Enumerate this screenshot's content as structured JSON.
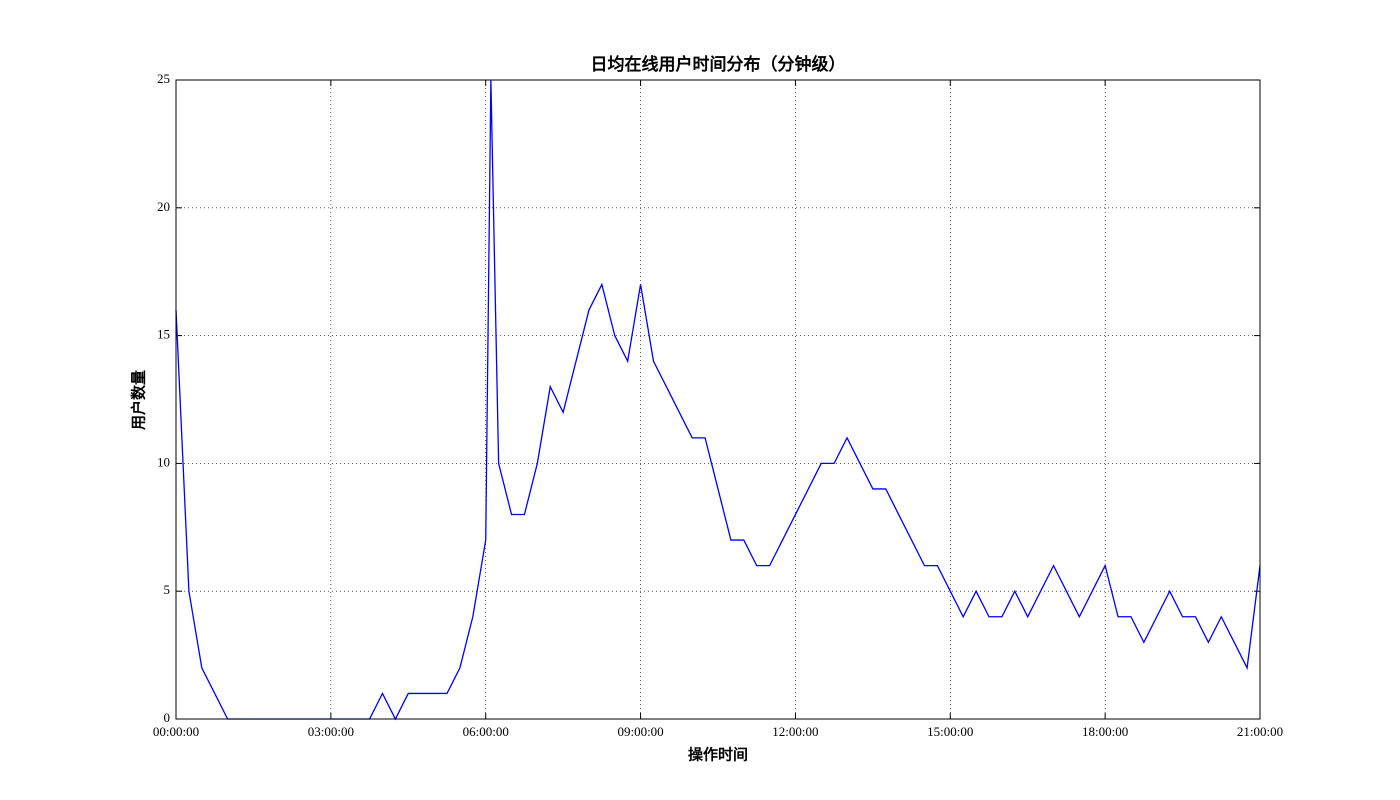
{
  "chart_data": {
    "type": "line",
    "title": "日均在线用户时间分布（分钟级）",
    "xlabel": "操作时间",
    "ylabel": "用户数量",
    "x": [
      0,
      15,
      30,
      45,
      60,
      75,
      90,
      105,
      120,
      135,
      150,
      165,
      180,
      195,
      210,
      225,
      240,
      255,
      270,
      285,
      300,
      315,
      330,
      345,
      360,
      366,
      375,
      390,
      405,
      420,
      435,
      450,
      465,
      480,
      495,
      510,
      525,
      540,
      555,
      570,
      585,
      600,
      615,
      630,
      645,
      660,
      675,
      690,
      705,
      720,
      735,
      750,
      765,
      780,
      795,
      810,
      825,
      840,
      855,
      870,
      885,
      900,
      915,
      930,
      945,
      960,
      975,
      990,
      1005,
      1020,
      1035,
      1050,
      1065,
      1080,
      1095,
      1110,
      1125,
      1140,
      1155,
      1170,
      1185,
      1200,
      1215,
      1230,
      1245,
      1260
    ],
    "series": [
      {
        "name": "用户数量",
        "color": "#0000ff",
        "values": [
          16,
          5,
          2,
          1,
          0,
          0,
          0,
          0,
          0,
          0,
          0,
          0,
          0,
          0,
          0,
          0,
          1,
          0,
          1,
          1,
          1,
          1,
          2,
          4,
          7,
          25,
          10,
          8,
          8,
          10,
          13,
          12,
          14,
          16,
          17,
          15,
          14,
          17,
          14,
          13,
          12,
          11,
          11,
          9,
          7,
          7,
          6,
          6,
          7,
          8,
          9,
          10,
          10,
          11,
          10,
          9,
          9,
          8,
          7,
          6,
          6,
          5,
          4,
          5,
          4,
          4,
          5,
          4,
          5,
          6,
          5,
          4,
          5,
          6,
          4,
          4,
          3,
          4,
          5,
          4,
          4,
          3,
          4,
          3,
          2,
          6
        ]
      }
    ],
    "xlim": [
      0,
      1260
    ],
    "xticks": [
      {
        "value": 0,
        "label": "00:00:00"
      },
      {
        "value": 180,
        "label": "03:00:00"
      },
      {
        "value": 360,
        "label": "06:00:00"
      },
      {
        "value": 540,
        "label": "09:00:00"
      },
      {
        "value": 720,
        "label": "12:00:00"
      },
      {
        "value": 900,
        "label": "15:00:00"
      },
      {
        "value": 1080,
        "label": "18:00:00"
      },
      {
        "value": 1260,
        "label": "21:00:00"
      }
    ],
    "ylim": [
      0,
      25
    ],
    "yticks": [
      0,
      5,
      10,
      15,
      20,
      25
    ],
    "grid": true
  }
}
